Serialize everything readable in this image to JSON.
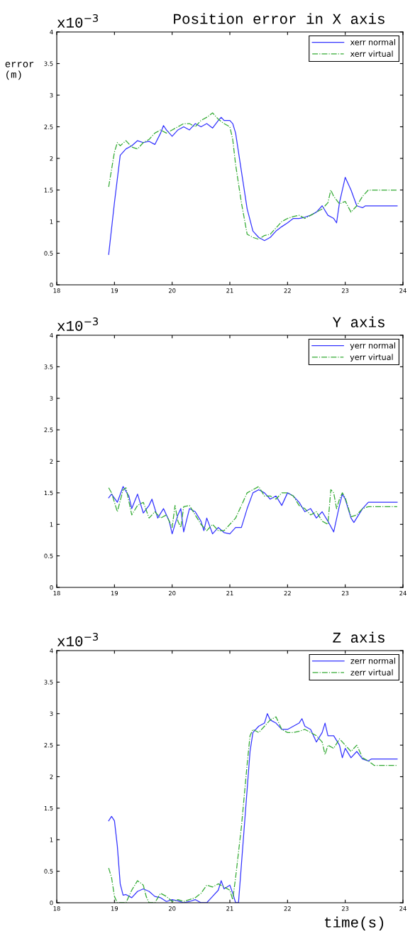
{
  "chart_data": [
    {
      "type": "line",
      "title": "Position error in X axis",
      "ylabel": "error\n(m)",
      "annotations": [
        "x10$^{−3}$"
      ],
      "xlim": [
        18,
        24
      ],
      "xticks": [
        18,
        19,
        20,
        21,
        22,
        23,
        24
      ],
      "ylim": [
        0,
        4
      ],
      "yticks": [
        0,
        0.5,
        1,
        1.5,
        2,
        2.5,
        3,
        3.5,
        4
      ],
      "grid": false,
      "legend": "top right",
      "series": [
        {
          "name": "xerr normal",
          "color": "#3333ff",
          "line_style": "solid",
          "x": [
            18.9,
            19.0,
            19.1,
            19.2,
            19.3,
            19.4,
            19.5,
            19.6,
            19.7,
            19.8,
            19.85,
            19.9,
            20.0,
            20.1,
            20.2,
            20.3,
            20.4,
            20.5,
            20.6,
            20.7,
            20.8,
            20.85,
            20.9,
            21.0,
            21.05,
            21.1,
            21.2,
            21.3,
            21.4,
            21.5,
            21.6,
            21.7,
            21.8,
            21.9,
            22.0,
            22.1,
            22.2,
            22.3,
            22.4,
            22.5,
            22.6,
            22.7,
            22.8,
            22.85,
            22.9,
            23.0,
            23.1,
            23.2,
            23.3,
            23.35,
            23.9
          ],
          "values": [
            0.48,
            1.3,
            2.05,
            2.15,
            2.2,
            2.28,
            2.25,
            2.27,
            2.22,
            2.4,
            2.52,
            2.45,
            2.35,
            2.45,
            2.5,
            2.45,
            2.55,
            2.5,
            2.55,
            2.48,
            2.6,
            2.65,
            2.6,
            2.6,
            2.55,
            2.4,
            1.8,
            1.2,
            0.85,
            0.75,
            0.7,
            0.75,
            0.85,
            0.92,
            0.98,
            1.05,
            1.05,
            1.07,
            1.1,
            1.15,
            1.25,
            1.1,
            1.05,
            0.98,
            1.3,
            1.7,
            1.5,
            1.25,
            1.22,
            1.25,
            1.25
          ]
        },
        {
          "name": "xerr virtual",
          "color": "#33aa33",
          "line_style": "dashdot",
          "x": [
            18.9,
            19.0,
            19.05,
            19.1,
            19.2,
            19.3,
            19.4,
            19.5,
            19.6,
            19.7,
            19.8,
            19.9,
            20.0,
            20.1,
            20.2,
            20.3,
            20.4,
            20.5,
            20.6,
            20.7,
            20.8,
            20.9,
            21.0,
            21.05,
            21.1,
            21.2,
            21.3,
            21.4,
            21.5,
            21.6,
            21.7,
            21.8,
            21.9,
            22.0,
            22.1,
            22.2,
            22.3,
            22.4,
            22.5,
            22.6,
            22.7,
            22.75,
            22.8,
            22.9,
            23.0,
            23.1,
            23.2,
            23.3,
            23.4,
            23.9
          ],
          "values": [
            1.55,
            2.1,
            2.25,
            2.2,
            2.28,
            2.18,
            2.15,
            2.25,
            2.3,
            2.4,
            2.45,
            2.4,
            2.45,
            2.5,
            2.55,
            2.55,
            2.5,
            2.6,
            2.65,
            2.72,
            2.62,
            2.55,
            2.5,
            2.3,
            1.9,
            1.3,
            0.8,
            0.75,
            0.72,
            0.78,
            0.8,
            0.9,
            1.0,
            1.05,
            1.08,
            1.1,
            1.05,
            1.1,
            1.15,
            1.2,
            1.3,
            1.5,
            1.4,
            1.28,
            1.32,
            1.15,
            1.25,
            1.4,
            1.5,
            1.5
          ]
        }
      ]
    },
    {
      "type": "line",
      "title": "Y axis",
      "annotations": [
        "x10$^{−3}$"
      ],
      "xlim": [
        18,
        24
      ],
      "xticks": [
        18,
        19,
        20,
        21,
        22,
        23,
        24
      ],
      "ylim": [
        0,
        4
      ],
      "yticks": [
        0,
        0.5,
        1,
        1.5,
        2,
        2.5,
        3,
        3.5,
        4
      ],
      "grid": false,
      "legend": "top right",
      "series": [
        {
          "name": "yerr normal",
          "color": "#3333ff",
          "line_style": "solid",
          "x": [
            18.9,
            18.95,
            19.05,
            19.15,
            19.25,
            19.3,
            19.4,
            19.5,
            19.6,
            19.65,
            19.75,
            19.85,
            19.95,
            20.0,
            20.1,
            20.15,
            20.2,
            20.3,
            20.4,
            20.5,
            20.55,
            20.6,
            20.7,
            20.8,
            20.9,
            21.0,
            21.1,
            21.2,
            21.3,
            21.4,
            21.5,
            21.6,
            21.7,
            21.8,
            21.9,
            22.0,
            22.1,
            22.2,
            22.3,
            22.4,
            22.5,
            22.6,
            22.7,
            22.8,
            22.9,
            22.95,
            23.0,
            23.1,
            23.15,
            23.3,
            23.4,
            23.9
          ],
          "values": [
            1.42,
            1.48,
            1.35,
            1.6,
            1.45,
            1.25,
            1.48,
            1.18,
            1.3,
            1.4,
            1.1,
            1.25,
            1.05,
            0.85,
            1.15,
            1.25,
            0.88,
            1.25,
            1.2,
            1.05,
            0.9,
            1.1,
            0.85,
            0.95,
            0.87,
            0.85,
            0.95,
            0.95,
            1.25,
            1.5,
            1.55,
            1.5,
            1.4,
            1.45,
            1.3,
            1.5,
            1.45,
            1.35,
            1.2,
            1.25,
            1.1,
            1.2,
            1.05,
            0.88,
            1.3,
            1.48,
            1.4,
            1.1,
            1.03,
            1.25,
            1.35,
            1.35
          ]
        },
        {
          "name": "yerr virtual",
          "color": "#33aa33",
          "line_style": "dashdot",
          "x": [
            18.9,
            18.95,
            19.05,
            19.15,
            19.2,
            19.3,
            19.4,
            19.5,
            19.6,
            19.7,
            19.8,
            19.9,
            20.0,
            20.05,
            20.1,
            20.15,
            20.2,
            20.3,
            20.4,
            20.5,
            20.6,
            20.7,
            20.8,
            20.9,
            21.0,
            21.1,
            21.2,
            21.3,
            21.4,
            21.5,
            21.6,
            21.7,
            21.8,
            21.9,
            22.0,
            22.1,
            22.2,
            22.3,
            22.4,
            22.5,
            22.6,
            22.7,
            22.75,
            22.8,
            22.85,
            22.9,
            22.95,
            23.0,
            23.1,
            23.2,
            23.3,
            23.4,
            23.9
          ],
          "values": [
            1.58,
            1.5,
            1.2,
            1.55,
            1.58,
            1.15,
            1.3,
            1.35,
            1.1,
            1.2,
            1.1,
            1.15,
            0.95,
            1.3,
            1.05,
            0.95,
            1.28,
            1.3,
            1.15,
            1.0,
            0.9,
            1.0,
            0.9,
            0.9,
            1.0,
            1.1,
            1.3,
            1.5,
            1.55,
            1.6,
            1.45,
            1.45,
            1.4,
            1.5,
            1.5,
            1.45,
            1.3,
            1.25,
            1.15,
            1.2,
            1.05,
            1.0,
            1.55,
            1.5,
            1.25,
            1.4,
            1.5,
            1.42,
            1.12,
            1.15,
            1.25,
            1.28,
            1.28
          ]
        }
      ]
    },
    {
      "type": "line",
      "title": "Z axis",
      "xlabel": "time(s)",
      "annotations": [
        "x10$^{−3}$"
      ],
      "xlim": [
        18,
        24
      ],
      "xticks": [
        18,
        19,
        20,
        21,
        22,
        23,
        24
      ],
      "ylim": [
        0,
        4
      ],
      "yticks": [
        0,
        0.5,
        1,
        1.5,
        2,
        2.5,
        3,
        3.5,
        4
      ],
      "grid": false,
      "legend": "top right",
      "series": [
        {
          "name": "zerr normal",
          "color": "#3333ff",
          "line_style": "solid",
          "x": [
            18.9,
            18.95,
            19.0,
            19.05,
            19.1,
            19.15,
            19.2,
            19.3,
            19.4,
            19.5,
            19.6,
            19.7,
            19.8,
            19.9,
            20.0,
            20.1,
            20.2,
            20.3,
            20.4,
            20.5,
            20.6,
            20.7,
            20.8,
            20.85,
            20.9,
            21.0,
            21.05,
            21.1,
            21.15,
            21.2,
            21.3,
            21.35,
            21.4,
            21.5,
            21.6,
            21.65,
            21.7,
            21.8,
            21.9,
            22.0,
            22.1,
            22.2,
            22.25,
            22.3,
            22.4,
            22.5,
            22.6,
            22.65,
            22.7,
            22.8,
            22.9,
            22.95,
            23.0,
            23.1,
            23.2,
            23.3,
            23.4,
            23.45,
            23.9
          ],
          "values": [
            1.3,
            1.37,
            1.3,
            0.9,
            0.3,
            0.12,
            0.13,
            0.08,
            0.18,
            0.22,
            0.18,
            0.1,
            0.08,
            0.02,
            0.05,
            0.03,
            0.0,
            0.02,
            0.05,
            0.0,
            0.0,
            0.1,
            0.2,
            0.35,
            0.22,
            0.28,
            0.15,
            0.0,
            0.0,
            0.6,
            1.8,
            2.4,
            2.7,
            2.8,
            2.85,
            3.0,
            2.9,
            2.85,
            2.75,
            2.75,
            2.8,
            2.85,
            2.92,
            2.8,
            2.75,
            2.55,
            2.7,
            2.85,
            2.65,
            2.65,
            2.5,
            2.3,
            2.45,
            2.3,
            2.4,
            2.28,
            2.25,
            2.28,
            2.28
          ]
        },
        {
          "name": "zerr virtual",
          "color": "#33aa33",
          "line_style": "dashdot",
          "x": [
            18.9,
            18.95,
            19.0,
            19.05,
            19.2,
            19.3,
            19.4,
            19.5,
            19.55,
            19.6,
            19.7,
            19.8,
            19.9,
            20.0,
            20.1,
            20.2,
            20.3,
            20.4,
            20.5,
            20.6,
            20.7,
            20.8,
            20.9,
            21.0,
            21.05,
            21.1,
            21.2,
            21.3,
            21.35,
            21.4,
            21.5,
            21.6,
            21.7,
            21.8,
            21.9,
            22.0,
            22.1,
            22.2,
            22.3,
            22.4,
            22.5,
            22.6,
            22.65,
            22.7,
            22.8,
            22.9,
            23.0,
            23.1,
            23.2,
            23.3,
            23.4,
            23.5,
            23.9
          ],
          "values": [
            0.55,
            0.4,
            0.1,
            0.0,
            0.0,
            0.2,
            0.35,
            0.28,
            0.1,
            0.0,
            0.0,
            0.15,
            0.1,
            0.02,
            0.05,
            0.02,
            0.05,
            0.08,
            0.15,
            0.28,
            0.25,
            0.3,
            0.25,
            0.2,
            0.05,
            0.4,
            1.2,
            2.2,
            2.65,
            2.75,
            2.7,
            2.8,
            2.9,
            2.95,
            2.75,
            2.7,
            2.7,
            2.72,
            2.75,
            2.7,
            2.65,
            2.55,
            2.35,
            2.5,
            2.45,
            2.6,
            2.5,
            2.4,
            2.5,
            2.3,
            2.25,
            2.18,
            2.18
          ]
        }
      ]
    }
  ]
}
